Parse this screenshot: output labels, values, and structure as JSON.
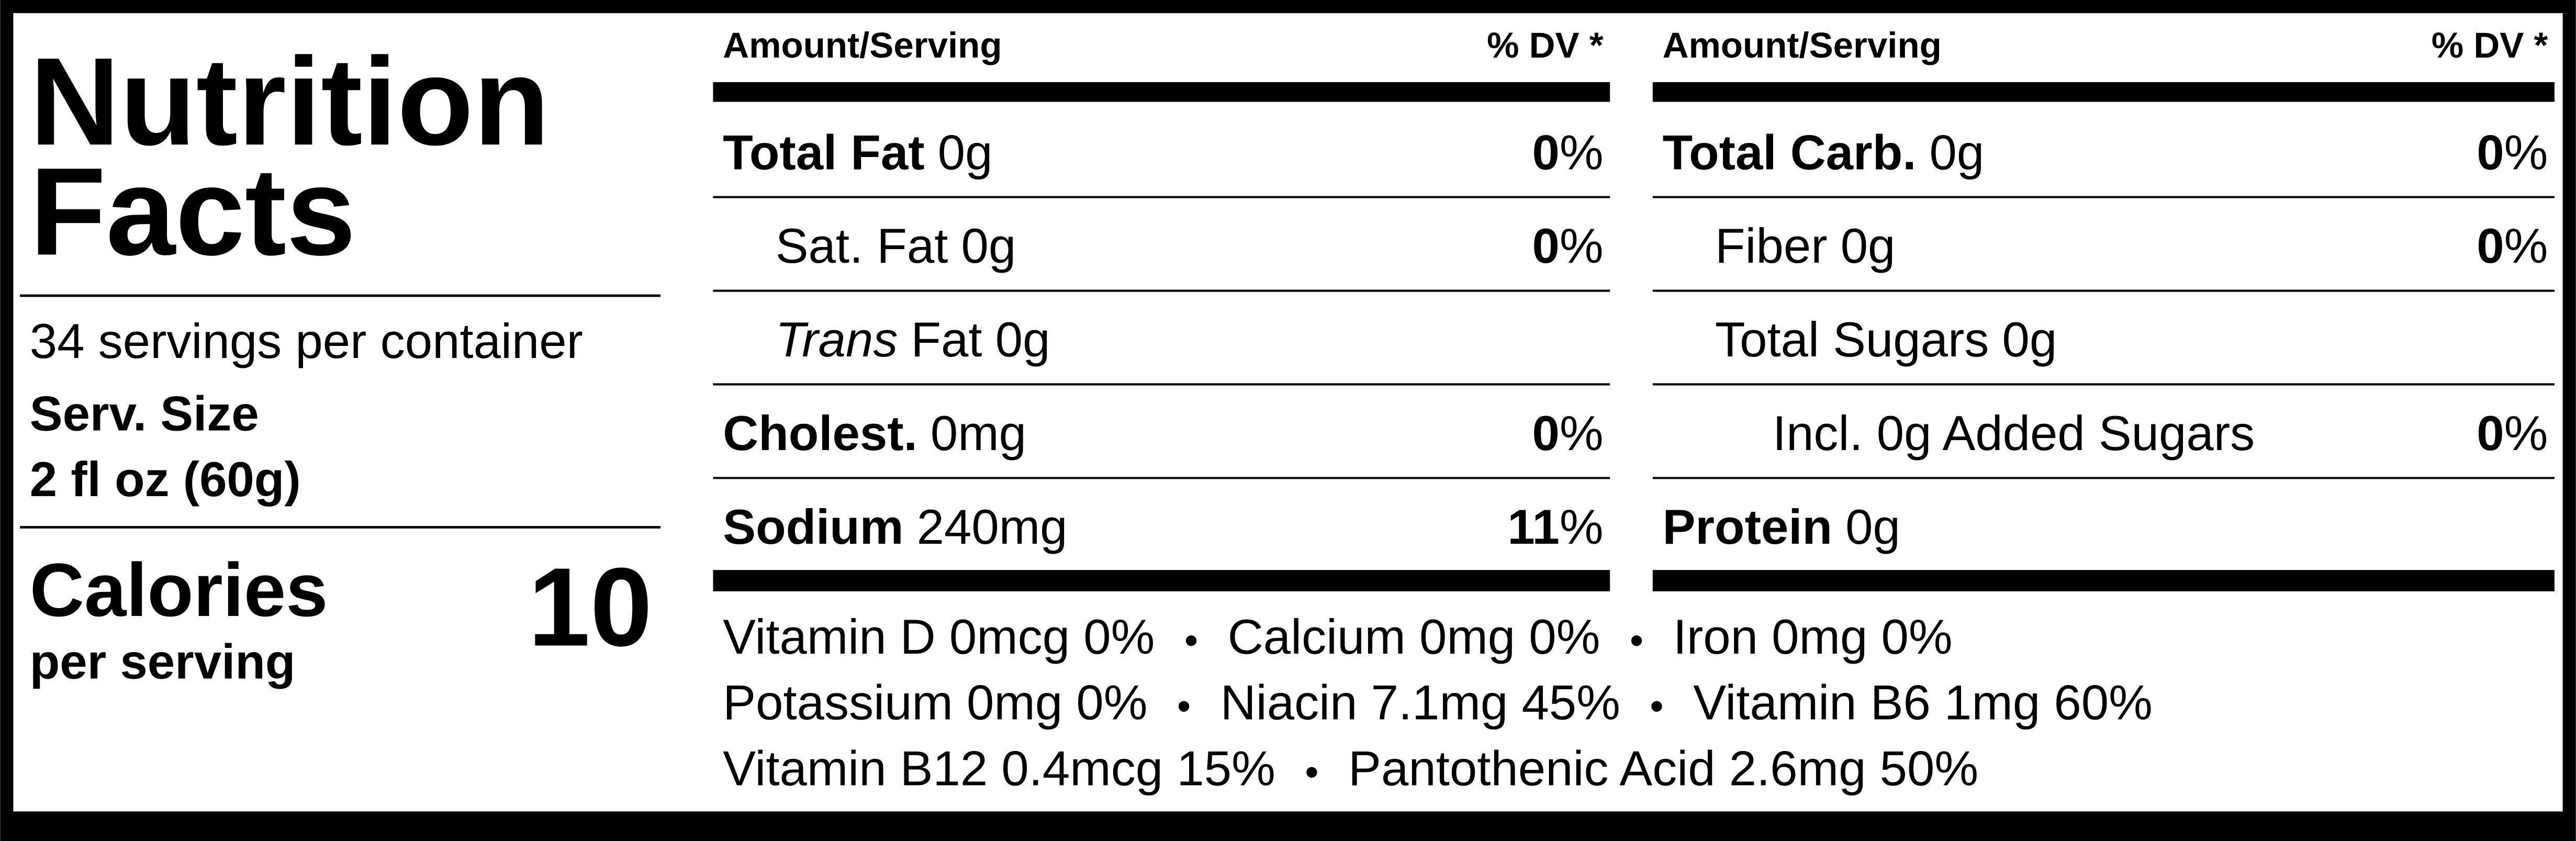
{
  "header": {
    "title_line1": "Nutrition",
    "title_line2": "Facts",
    "servings": "34 servings per container",
    "serving_size_label": "Serv. Size",
    "serving_size": "2 fl oz (60g)",
    "calories_label": "Calories",
    "calories_sub": "per serving",
    "calories": 10
  },
  "columns": [
    {
      "amount_header": "Amount/Serving",
      "dv_header": "% DV *",
      "rows": [
        {
          "name": "Total Fat",
          "amount": "0g",
          "dv": "0%",
          "bold": true,
          "indent": 0
        },
        {
          "name": "Sat. Fat",
          "amount": "0g",
          "dv": "0%",
          "bold": false,
          "indent": 1
        },
        {
          "name_italic": "Trans",
          "name": "Fat",
          "amount": "0g",
          "bold": false,
          "indent": 1
        },
        {
          "name": "Cholest.",
          "amount": "0mg",
          "dv": "0%",
          "bold": true,
          "indent": 0
        },
        {
          "name": "Sodium",
          "amount": "240mg",
          "dv": "11%",
          "bold": true,
          "indent": 0
        }
      ]
    },
    {
      "amount_header": "Amount/Serving",
      "dv_header": "% DV *",
      "rows": [
        {
          "name": "Total Carb.",
          "amount": "0g",
          "dv": "0%",
          "bold": true,
          "indent": 0
        },
        {
          "name": "Fiber",
          "amount": "0g",
          "dv": "0%",
          "bold": false,
          "indent": 1
        },
        {
          "name": "Total Sugars",
          "amount": "0g",
          "bold": false,
          "indent": 1
        },
        {
          "name": "Incl. 0g Added Sugars",
          "dv": "0%",
          "bold": false,
          "indent": 2
        },
        {
          "name": "Protein",
          "amount": "0g",
          "bold": true,
          "indent": 0
        }
      ]
    }
  ],
  "separator": "•",
  "vitamins": [
    [
      "Vitamin D 0mcg 0%",
      "Calcium 0mg 0%",
      "Iron 0mg 0%"
    ],
    [
      "Potassium 0mg 0%",
      "Niacin 7.1mg 45%",
      "Vitamin B6 1mg 60%"
    ],
    [
      "Vitamin B12 0.4mcg 15%",
      "Pantothenic Acid 2.6mg 50%"
    ]
  ]
}
